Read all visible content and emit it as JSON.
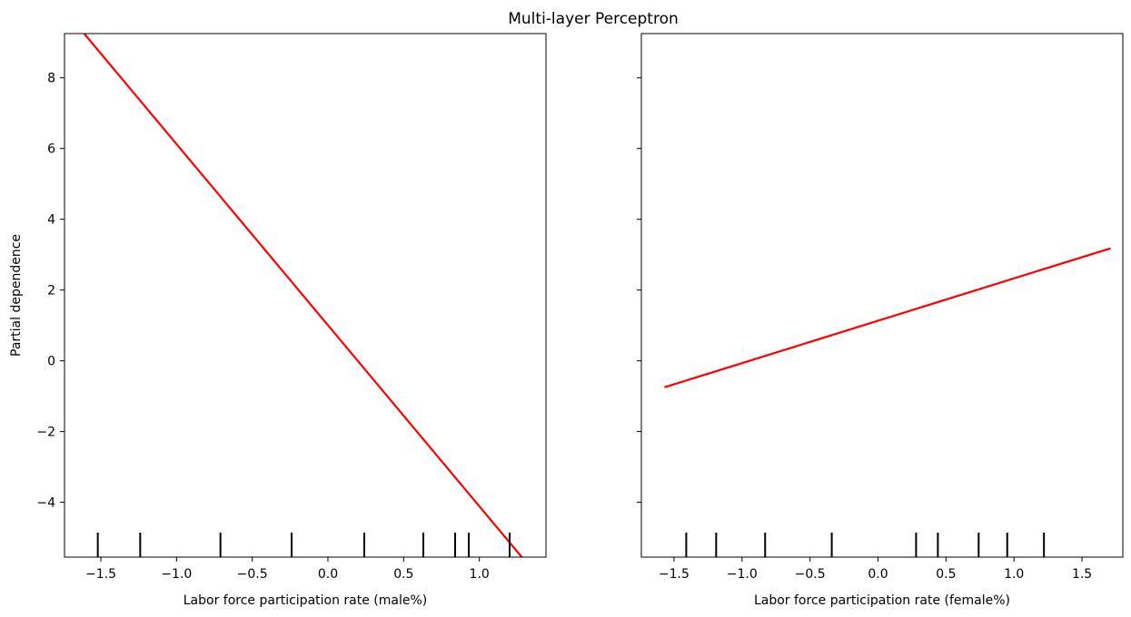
{
  "figure_title": "Multi-layer Perceptron",
  "chart_data": [
    {
      "type": "line",
      "title": "",
      "xlabel": "Labor force participation rate (male%)",
      "ylabel": "Partial dependence",
      "xlim": [
        -1.74,
        1.44
      ],
      "ylim": [
        -5.55,
        9.25
      ],
      "xticks": [
        -1.5,
        -1.0,
        -0.5,
        0.0,
        0.5,
        1.0
      ],
      "xtick_labels": [
        "−1.5",
        "−1.0",
        "−0.5",
        "0.0",
        "0.5",
        "1.0"
      ],
      "yticks": [
        -4,
        -2,
        0,
        2,
        4,
        6,
        8
      ],
      "ytick_labels": [
        "−4",
        "−2",
        "0",
        "2",
        "4",
        "6",
        "8"
      ],
      "series": [
        {
          "x": [
            -1.62,
            1.31
          ],
          "y": [
            9.3,
            -5.7
          ],
          "color": "#ff0000"
        }
      ],
      "deciles": [
        -1.52,
        -1.24,
        -0.71,
        -0.24,
        0.24,
        0.63,
        0.84,
        0.93,
        1.2
      ],
      "grid": false
    },
    {
      "type": "line",
      "title": "",
      "xlabel": "Labor force participation rate (female%)",
      "ylabel": "",
      "xlim": [
        -1.74,
        1.8
      ],
      "ylim": [
        -5.55,
        9.25
      ],
      "xticks": [
        -1.5,
        -1.0,
        -0.5,
        0.0,
        0.5,
        1.0,
        1.5
      ],
      "xtick_labels": [
        "−1.5",
        "−1.0",
        "−0.5",
        "0.0",
        "0.5",
        "1.0",
        "1.5"
      ],
      "yticks": [
        -4,
        -2,
        0,
        2,
        4,
        6,
        8
      ],
      "ytick_labels": [],
      "series": [
        {
          "x": [
            -1.57,
            1.71
          ],
          "y": [
            -0.75,
            3.18
          ],
          "color": "#ff0000"
        }
      ],
      "deciles": [
        -1.41,
        -1.19,
        -0.83,
        -0.34,
        0.28,
        0.44,
        0.74,
        0.95,
        1.22
      ],
      "grid": false
    }
  ]
}
